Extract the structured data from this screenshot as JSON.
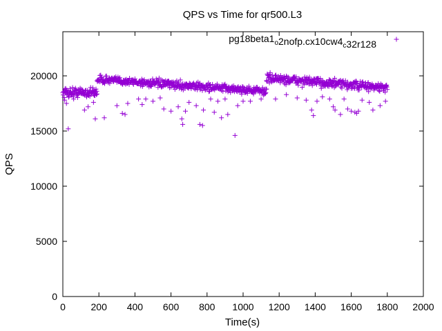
{
  "chart_data": {
    "type": "scatter",
    "title": "QPS vs Time for qr500.L3",
    "xlabel": "Time(s)",
    "ylabel": "QPS",
    "xlim": [
      0,
      2000
    ],
    "ylim": [
      0,
      24000
    ],
    "xticks": [
      0,
      200,
      400,
      600,
      800,
      1000,
      1200,
      1400,
      1600,
      1800,
      2000
    ],
    "yticks": [
      0,
      5000,
      10000,
      15000,
      20000
    ],
    "xtick_labels": [
      "0",
      "200",
      "400",
      "600",
      "800",
      "1000",
      "1200",
      "1400",
      "1600",
      "1800",
      "2000"
    ],
    "ytick_labels": [
      "0",
      "5000",
      "10000",
      "15000",
      "20000"
    ],
    "grid": false,
    "legend_position": "top-right",
    "marker": "+",
    "series": [
      {
        "name": "pg18beta1_o2nofp.cx10cw4_c32r128",
        "name_parts": [
          {
            "text": "pg18beta1",
            "sub": false
          },
          {
            "text": "o",
            "sub": true
          },
          {
            "text": "2nofp.cx10cw4",
            "sub": false
          },
          {
            "text": "c",
            "sub": true
          },
          {
            "text": "32r128",
            "sub": false
          }
        ],
        "color": "#9400d3",
        "segments": [
          {
            "x_start": 0,
            "x_end": 190,
            "level": 18500,
            "noise": 450,
            "trend": 0
          },
          {
            "x_start": 190,
            "x_end": 1130,
            "level": 19700,
            "noise": 350,
            "trend": -1100
          },
          {
            "x_start": 1130,
            "x_end": 1800,
            "level": 19800,
            "noise": 400,
            "trend": -900
          }
        ],
        "outliers": [
          [
            10,
            17800
          ],
          [
            20,
            17500
          ],
          [
            30,
            15200
          ],
          [
            60,
            17900
          ],
          [
            120,
            16900
          ],
          [
            140,
            17200
          ],
          [
            170,
            17600
          ],
          [
            180,
            16100
          ],
          [
            230,
            16200
          ],
          [
            300,
            17300
          ],
          [
            330,
            16600
          ],
          [
            345,
            16500
          ],
          [
            360,
            17500
          ],
          [
            420,
            17900
          ],
          [
            440,
            17400
          ],
          [
            460,
            17900
          ],
          [
            500,
            17700
          ],
          [
            540,
            18000
          ],
          [
            560,
            17000
          ],
          [
            600,
            16800
          ],
          [
            640,
            17200
          ],
          [
            660,
            16100
          ],
          [
            665,
            15600
          ],
          [
            680,
            16800
          ],
          [
            700,
            17600
          ],
          [
            740,
            17300
          ],
          [
            760,
            15600
          ],
          [
            775,
            15500
          ],
          [
            780,
            16900
          ],
          [
            820,
            17900
          ],
          [
            840,
            16700
          ],
          [
            860,
            17700
          ],
          [
            880,
            16200
          ],
          [
            900,
            17900
          ],
          [
            915,
            16500
          ],
          [
            955,
            14600
          ],
          [
            970,
            17300
          ],
          [
            1000,
            17700
          ],
          [
            1040,
            17700
          ],
          [
            1100,
            17900
          ],
          [
            1180,
            17900
          ],
          [
            1240,
            18300
          ],
          [
            1300,
            18000
          ],
          [
            1350,
            17800
          ],
          [
            1380,
            16900
          ],
          [
            1390,
            16400
          ],
          [
            1410,
            17700
          ],
          [
            1440,
            18100
          ],
          [
            1480,
            17900
          ],
          [
            1500,
            17200
          ],
          [
            1510,
            16900
          ],
          [
            1540,
            16500
          ],
          [
            1560,
            17900
          ],
          [
            1580,
            17000
          ],
          [
            1600,
            16800
          ],
          [
            1620,
            16700
          ],
          [
            1630,
            16600
          ],
          [
            1640,
            16800
          ],
          [
            1660,
            17800
          ],
          [
            1700,
            17600
          ],
          [
            1720,
            16900
          ],
          [
            1760,
            17300
          ],
          [
            1790,
            17700
          ]
        ]
      }
    ]
  }
}
